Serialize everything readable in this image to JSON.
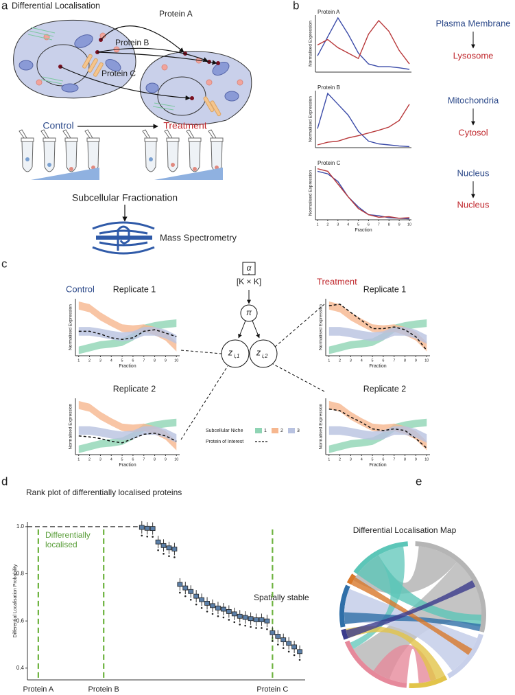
{
  "panel_labels": [
    "a",
    "b",
    "c",
    "d",
    "e"
  ],
  "panel_a": {
    "title": "Differential Localisation",
    "proteins": [
      "Protein A",
      "Protein B",
      "Protein C"
    ],
    "control": "Control",
    "treatment": "Treatment",
    "fractionation": "Subcellular Fractionation",
    "mass_spec": "Mass Spectrometry"
  },
  "panel_b_labels": [
    {
      "control": "Plasma Membrane",
      "treatment": "Lysosome"
    },
    {
      "control": "Mitochondria",
      "treatment": "Cytosol"
    },
    {
      "control": "Nucleus",
      "treatment": "Nucleus"
    }
  ],
  "panel_c": {
    "control": "Control",
    "treatment": "Treatment",
    "model": {
      "alpha": "α",
      "matrix": "[K × K]",
      "pi": "π",
      "z": [
        {
          "symbol": "z",
          "subscript": "i,1"
        },
        {
          "symbol": "z",
          "subscript": "i,2"
        }
      ]
    },
    "legend_title": "Subcellular Niche",
    "protein_label": "Protein of Interest",
    "niches": [
      {
        "name": "1",
        "color": "#8fd4b4",
        "upper": [
          0.17,
          0.22,
          0.27,
          0.29,
          0.32,
          0.42,
          0.57,
          0.62,
          0.65,
          0.67
        ],
        "lower": [
          0.03,
          0.08,
          0.13,
          0.15,
          0.18,
          0.28,
          0.43,
          0.48,
          0.51,
          0.53
        ]
      },
      {
        "name": "2",
        "color": "#f6b78f",
        "upper": [
          1.0,
          0.95,
          0.8,
          0.68,
          0.58,
          0.56,
          0.58,
          0.53,
          0.44,
          0.25
        ],
        "lower": [
          0.85,
          0.8,
          0.65,
          0.54,
          0.44,
          0.42,
          0.44,
          0.38,
          0.28,
          0.08
        ]
      },
      {
        "name": "3",
        "color": "#b8c2e0",
        "upper": [
          0.53,
          0.53,
          0.5,
          0.46,
          0.43,
          0.45,
          0.53,
          0.53,
          0.48,
          0.38
        ],
        "lower": [
          0.37,
          0.37,
          0.34,
          0.3,
          0.27,
          0.29,
          0.37,
          0.37,
          0.32,
          0.22
        ]
      }
    ]
  },
  "panel_e": {
    "title": "Differential Localisation Map"
  },
  "chart_data": [
    {
      "type": "line",
      "title": "Protein A",
      "ylabel": "Normalised Expression",
      "x": [
        1,
        2,
        3,
        4,
        5,
        6,
        7,
        8,
        9,
        10
      ],
      "xlim": [
        0.8,
        10.2
      ],
      "ylim": [
        0,
        1.05
      ],
      "series": [
        {
          "color": "#3b4ba8",
          "values": [
            0.3,
            0.65,
            1.0,
            0.7,
            0.35,
            0.15,
            0.1,
            0.1,
            0.08,
            0.05
          ]
        },
        {
          "color": "#b8383a",
          "values": [
            0.5,
            0.6,
            0.45,
            0.35,
            0.25,
            0.7,
            0.95,
            0.75,
            0.4,
            0.15
          ]
        }
      ]
    },
    {
      "type": "line",
      "title": "Protein B",
      "ylabel": "Normalised Expression",
      "x": [
        1,
        2,
        3,
        4,
        5,
        6,
        7,
        8,
        9,
        10
      ],
      "xlim": [
        0.8,
        10.2
      ],
      "ylim": [
        0,
        1.05
      ],
      "series": [
        {
          "color": "#3b4ba8",
          "values": [
            0.35,
            1.0,
            0.8,
            0.6,
            0.3,
            0.12,
            0.07,
            0.05,
            0.03,
            0.02
          ]
        },
        {
          "color": "#b8383a",
          "values": [
            0.05,
            0.1,
            0.12,
            0.18,
            0.22,
            0.27,
            0.32,
            0.38,
            0.5,
            0.8
          ]
        }
      ]
    },
    {
      "type": "line",
      "title": "Protein C",
      "ylabel": "Normalised Expression",
      "xlabel": "Fraction",
      "x": [
        1,
        2,
        3,
        4,
        5,
        6,
        7,
        8,
        9,
        10
      ],
      "xlim": [
        0.8,
        10.2
      ],
      "ylim": [
        0,
        1.05
      ],
      "xticks": [
        1,
        2,
        3,
        4,
        5,
        6,
        7,
        8,
        9,
        10
      ],
      "series": [
        {
          "color": "#3b4ba8",
          "values": [
            0.95,
            0.9,
            0.75,
            0.45,
            0.25,
            0.1,
            0.08,
            0.04,
            0.03,
            0.02
          ]
        },
        {
          "color": "#b8383a",
          "values": [
            1.0,
            0.95,
            0.7,
            0.45,
            0.22,
            0.1,
            0.05,
            0.06,
            0.03,
            0.04
          ]
        }
      ]
    },
    {
      "type": "band",
      "title": "Replicate 1",
      "ylabel": "Normalised Expression",
      "xlabel": "Fraction",
      "x": [
        1,
        2,
        3,
        4,
        5,
        6,
        7,
        8,
        9,
        10
      ],
      "xlim": [
        0.7,
        10.3
      ],
      "ylim": [
        0,
        1.05
      ],
      "xticks": [
        1,
        2,
        3,
        4,
        5,
        6,
        7,
        8,
        9,
        10
      ],
      "protein": {
        "color": "#111111",
        "values": [
          0.45,
          0.45,
          0.4,
          0.33,
          0.3,
          0.33,
          0.45,
          0.48,
          0.42,
          0.35
        ]
      }
    },
    {
      "type": "band",
      "title": "Replicate 2",
      "ylabel": "Normalised Expression",
      "xlabel": "Fraction",
      "x": [
        1,
        2,
        3,
        4,
        5,
        6,
        7,
        8,
        9,
        10
      ],
      "xlim": [
        0.7,
        10.3
      ],
      "ylim": [
        0,
        1.05
      ],
      "xticks": [
        1,
        2,
        3,
        4,
        5,
        6,
        7,
        8,
        9,
        10
      ],
      "protein": {
        "color": "#111111",
        "values": [
          0.35,
          0.33,
          0.3,
          0.25,
          0.22,
          0.3,
          0.38,
          0.4,
          0.35,
          0.25
        ]
      }
    },
    {
      "type": "band",
      "title": "Replicate 1",
      "ylabel": "Normalised Expression",
      "xlabel": "Fraction",
      "x": [
        1,
        2,
        3,
        4,
        5,
        6,
        7,
        8,
        9,
        10
      ],
      "xlim": [
        0.7,
        10.3
      ],
      "ylim": [
        0,
        1.05
      ],
      "xticks": [
        1,
        2,
        3,
        4,
        5,
        6,
        7,
        8,
        9,
        10
      ],
      "protein": {
        "color": "#111111",
        "values": [
          0.92,
          0.95,
          0.8,
          0.65,
          0.5,
          0.5,
          0.53,
          0.48,
          0.35,
          0.1
        ]
      }
    },
    {
      "type": "band",
      "title": "Replicate 2",
      "ylabel": "Normalised Expression",
      "xlabel": "Fraction",
      "x": [
        1,
        2,
        3,
        4,
        5,
        6,
        7,
        8,
        9,
        10
      ],
      "xlim": [
        0.7,
        10.3
      ],
      "ylim": [
        0,
        1.05
      ],
      "xticks": [
        1,
        2,
        3,
        4,
        5,
        6,
        7,
        8,
        9,
        10
      ],
      "protein": {
        "color": "#111111",
        "values": [
          0.85,
          0.82,
          0.7,
          0.6,
          0.48,
          0.45,
          0.48,
          0.45,
          0.3,
          0.12
        ]
      }
    },
    {
      "type": "box",
      "title": "Rank plot of differentially localised proteins",
      "ylabel": "Differential Localisation Probability",
      "x": [
        21,
        22,
        23,
        24,
        25,
        26,
        27,
        28,
        29,
        30,
        31,
        32,
        33,
        34,
        35,
        36,
        37,
        38,
        39,
        40,
        41,
        42,
        43,
        44,
        45,
        46,
        47,
        48,
        49,
        50
      ],
      "values": [
        0.997,
        0.993,
        0.992,
        0.935,
        0.92,
        0.91,
        0.905,
        0.755,
        0.74,
        0.725,
        0.705,
        0.69,
        0.675,
        0.665,
        0.655,
        0.65,
        0.64,
        0.63,
        0.62,
        0.615,
        0.61,
        0.605,
        0.605,
        0.6,
        0.55,
        0.535,
        0.52,
        0.505,
        0.49,
        0.47
      ],
      "xlim": [
        0,
        51
      ],
      "ylim": [
        0.35,
        1.02
      ],
      "yticks": [
        0.4,
        0.6,
        0.8,
        {
          "value": 1,
          "label": "1.0"
        }
      ],
      "color": "#5b7fa8",
      "reference_line": 1,
      "annotations": [
        "Differentially localised",
        "Spatially stable"
      ],
      "annotation_color": "#5a9e3a",
      "markers": [
        {
          "label": "Protein A",
          "x": 2
        },
        {
          "label": "Protein B",
          "x": 14
        },
        {
          "label": "Protein C",
          "x": 45
        }
      ],
      "marker_color": "#6db33f"
    }
  ]
}
